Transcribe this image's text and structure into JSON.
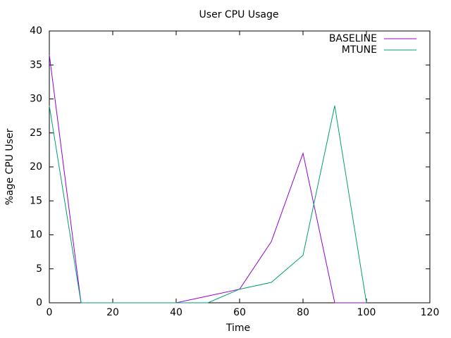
{
  "chart_data": {
    "type": "line",
    "title": "User CPU Usage",
    "x_label": "Time",
    "y_label": "%age CPU User",
    "x": [
      0,
      10,
      20,
      30,
      40,
      50,
      60,
      70,
      80,
      90,
      100
    ],
    "series": [
      {
        "name": "BASELINE",
        "color": "#9400d3",
        "values": [
          36.5,
          0,
          0,
          0,
          0,
          1,
          2,
          9,
          22,
          0,
          0
        ]
      },
      {
        "name": "MTUNE",
        "color": "#009e73",
        "values": [
          29,
          0,
          0,
          0,
          0,
          0,
          2,
          3,
          7,
          29,
          0
        ]
      }
    ],
    "xlim": [
      0,
      120
    ],
    "xticks": [
      0,
      20,
      40,
      60,
      80,
      100,
      120
    ],
    "ylim": [
      0,
      40
    ],
    "yticks": [
      0,
      5,
      10,
      15,
      20,
      25,
      30,
      35,
      40
    ],
    "grid": false,
    "legend": "top-right"
  }
}
